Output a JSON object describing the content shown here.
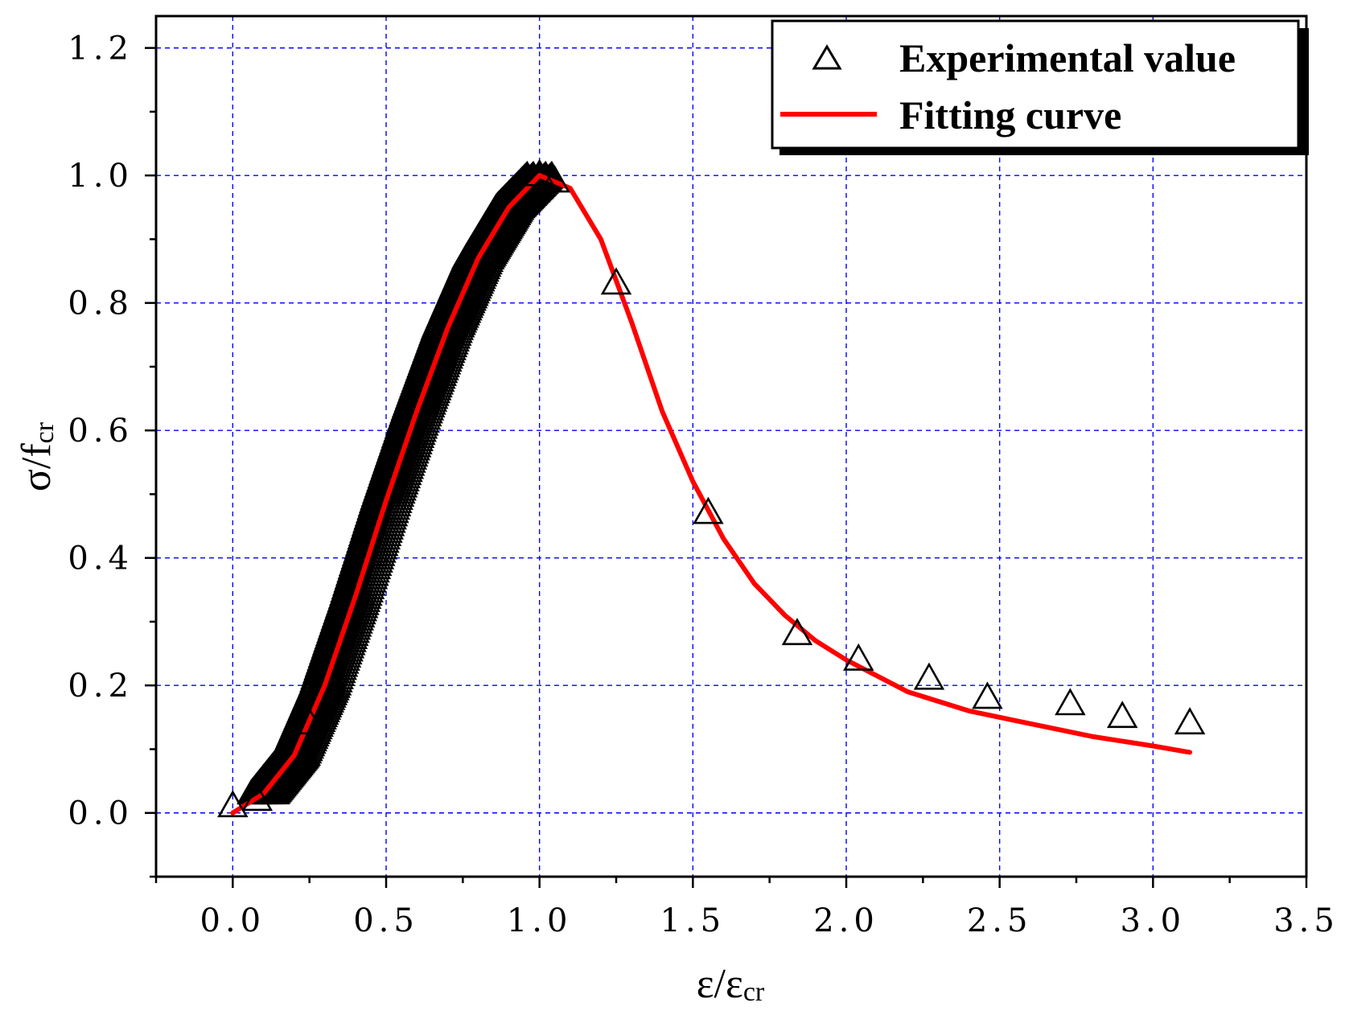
{
  "chart_data": {
    "type": "scatter",
    "x_axis": {
      "label_main": "ε/ε",
      "label_sub": "cr",
      "range": [
        -0.25,
        3.5
      ],
      "ticks": [
        "0.0",
        "0.5",
        "1.0",
        "1.5",
        "2.0",
        "2.5",
        "3.0",
        "3.5"
      ],
      "tick_values": [
        0.0,
        0.5,
        1.0,
        1.5,
        2.0,
        2.5,
        3.0,
        3.5
      ]
    },
    "y_axis": {
      "label_main": "σ/f",
      "label_sub": "cr",
      "range": [
        -0.1,
        1.25
      ],
      "ticks": [
        "0.0",
        "0.2",
        "0.4",
        "0.6",
        "0.8",
        "1.0",
        "1.2"
      ],
      "tick_values": [
        0.0,
        0.2,
        0.4,
        0.6,
        0.8,
        1.0,
        1.2
      ]
    },
    "grid": true,
    "legend_position": "top-right",
    "series": [
      {
        "name": "Experimental value",
        "kind": "scatter",
        "marker": "triangle-open",
        "color": "#000000",
        "points": [
          [
            0.0,
            0.01
          ],
          [
            0.08,
            0.02
          ],
          [
            0.25,
            0.14
          ],
          [
            1.0,
            1.0
          ],
          [
            1.05,
            0.99
          ],
          [
            1.25,
            0.83
          ],
          [
            1.55,
            0.47
          ],
          [
            1.84,
            0.28
          ],
          [
            2.04,
            0.24
          ],
          [
            2.27,
            0.21
          ],
          [
            2.46,
            0.18
          ],
          [
            2.73,
            0.17
          ],
          [
            2.9,
            0.15
          ],
          [
            3.12,
            0.14
          ]
        ],
        "dense_band": {
          "x_start": 0.1,
          "x_end": 1.0,
          "y_at_start": 0.03,
          "y_at_end": 1.0,
          "band_halfwidth_x": 0.04
        }
      },
      {
        "name": "Fitting curve",
        "kind": "line",
        "color": "#ff0000",
        "points": [
          [
            0.0,
            0.0
          ],
          [
            0.1,
            0.03
          ],
          [
            0.2,
            0.09
          ],
          [
            0.3,
            0.2
          ],
          [
            0.4,
            0.34
          ],
          [
            0.5,
            0.49
          ],
          [
            0.6,
            0.63
          ],
          [
            0.7,
            0.76
          ],
          [
            0.8,
            0.87
          ],
          [
            0.9,
            0.95
          ],
          [
            1.0,
            1.0
          ],
          [
            1.1,
            0.98
          ],
          [
            1.2,
            0.9
          ],
          [
            1.3,
            0.77
          ],
          [
            1.4,
            0.63
          ],
          [
            1.5,
            0.52
          ],
          [
            1.6,
            0.43
          ],
          [
            1.7,
            0.36
          ],
          [
            1.8,
            0.31
          ],
          [
            1.9,
            0.27
          ],
          [
            2.0,
            0.24
          ],
          [
            2.2,
            0.19
          ],
          [
            2.4,
            0.16
          ],
          [
            2.6,
            0.14
          ],
          [
            2.8,
            0.12
          ],
          [
            3.0,
            0.105
          ],
          [
            3.12,
            0.095
          ]
        ]
      }
    ]
  }
}
